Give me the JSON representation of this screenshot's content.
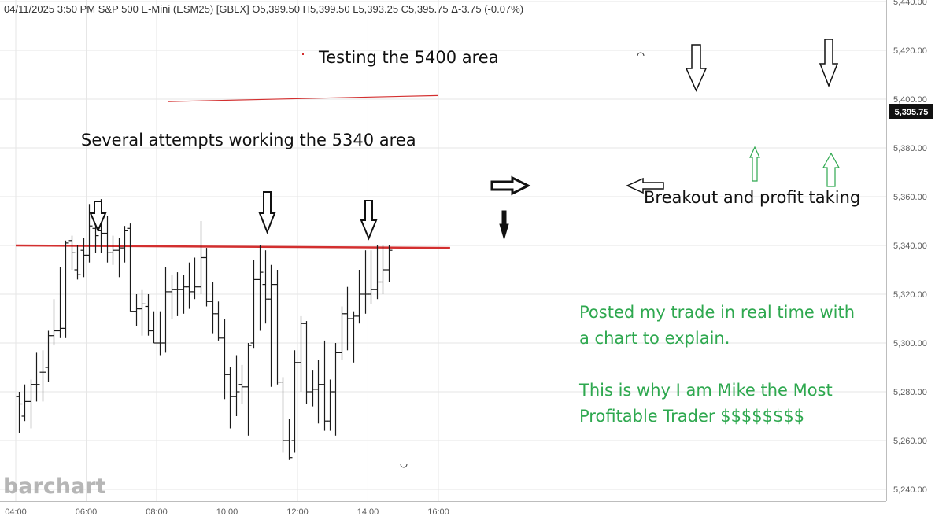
{
  "header": {
    "text": "04/11/2025  3:50 PM S&P 500 E-Mini (ESM25) [GBLX] O5,399.50 H5,399.50 L5,393.25 C5,395.75 Δ-3.75 (-0.07%)"
  },
  "watermark": "barchart",
  "last_price_label": "5,395.75",
  "colors": {
    "bar": "#1a1a1a",
    "support_line": "#d32f2f",
    "annotation_green": "#2ea84f",
    "price_box": "#111111",
    "grid": "#e6e6e6"
  },
  "annotations": [
    {
      "text": "Testing the 5400 area",
      "color": "#111111"
    },
    {
      "text": "Several attempts working the 5340 area",
      "color": "#111111"
    },
    {
      "text": "Breakout and profit taking",
      "color": "#111111"
    },
    {
      "text": "Posted my trade in real time with",
      "color": "#2ea84f"
    },
    {
      "text": "a chart to explain.",
      "color": "#2ea84f"
    },
    {
      "text": "This is why I am Mike the Most",
      "color": "#2ea84f"
    },
    {
      "text": "Profitable Trader $$$$$$$$",
      "color": "#2ea84f"
    }
  ],
  "chart_data": {
    "type": "ohlc",
    "x_ticks": [
      "04:00",
      "06:00",
      "08:00",
      "10:00",
      "12:00",
      "14:00",
      "16:00"
    ],
    "y_ticks": [
      "5,440.00",
      "5,420.00",
      "5,400.00",
      "5,380.00",
      "5,360.00",
      "5,340.00",
      "5,320.00",
      "5,300.00",
      "5,280.00",
      "5,260.00",
      "5,240.00"
    ],
    "x_range": [
      "04:00",
      "16:20"
    ],
    "y_range": [
      5237,
      5441
    ],
    "grid": true,
    "y_axis_position": "right",
    "horizontal_lines": [
      {
        "from": "04:00",
        "to": "16:20",
        "y_start": 5340,
        "y_end": 5339
      },
      {
        "from": "08:20",
        "to": "16:00",
        "y_start": 5399,
        "y_end": 5401.5
      }
    ],
    "bars": [
      {
        "t": "04:05",
        "o": 5278,
        "h": 5280,
        "l": 5263,
        "c": 5275
      },
      {
        "t": "04:15",
        "o": 5270,
        "h": 5283,
        "l": 5268,
        "c": 5276
      },
      {
        "t": "04:25",
        "o": 5276,
        "h": 5285,
        "l": 5265,
        "c": 5283
      },
      {
        "t": "04:35",
        "o": 5283,
        "h": 5296,
        "l": 5276,
        "c": 5283
      },
      {
        "t": "04:45",
        "o": 5288,
        "h": 5297,
        "l": 5276,
        "c": 5288
      },
      {
        "t": "04:55",
        "o": 5290,
        "h": 5305,
        "l": 5284,
        "c": 5303
      },
      {
        "t": "05:05",
        "o": 5303,
        "h": 5318,
        "l": 5299,
        "c": 5305
      },
      {
        "t": "05:15",
        "o": 5305,
        "h": 5331,
        "l": 5302,
        "c": 5306
      },
      {
        "t": "05:25",
        "o": 5306,
        "h": 5342,
        "l": 5302,
        "c": 5341
      },
      {
        "t": "05:35",
        "o": 5342,
        "h": 5344,
        "l": 5330,
        "c": 5337
      },
      {
        "t": "05:45",
        "o": 5330,
        "h": 5340,
        "l": 5326,
        "c": 5328
      },
      {
        "t": "05:55",
        "o": 5338,
        "h": 5343,
        "l": 5327,
        "c": 5336
      },
      {
        "t": "06:05",
        "o": 5336,
        "h": 5357,
        "l": 5333,
        "c": 5348
      },
      {
        "t": "06:15",
        "o": 5347,
        "h": 5356,
        "l": 5337,
        "c": 5344
      },
      {
        "t": "06:25",
        "o": 5346,
        "h": 5359,
        "l": 5337,
        "c": 5345
      },
      {
        "t": "06:35",
        "o": 5345,
        "h": 5352,
        "l": 5333,
        "c": 5337
      },
      {
        "t": "06:45",
        "o": 5337,
        "h": 5344,
        "l": 5332,
        "c": 5338
      },
      {
        "t": "06:55",
        "o": 5338,
        "h": 5343,
        "l": 5327,
        "c": 5339
      },
      {
        "t": "07:05",
        "o": 5339,
        "h": 5348,
        "l": 5333,
        "c": 5346
      },
      {
        "t": "07:15",
        "o": 5347,
        "h": 5349,
        "l": 5313,
        "c": 5313
      },
      {
        "t": "07:25",
        "o": 5313,
        "h": 5320,
        "l": 5307,
        "c": 5314
      },
      {
        "t": "07:35",
        "o": 5314,
        "h": 5322,
        "l": 5303,
        "c": 5316
      },
      {
        "t": "07:45",
        "o": 5315,
        "h": 5320,
        "l": 5303,
        "c": 5305
      },
      {
        "t": "07:55",
        "o": 5305,
        "h": 5313,
        "l": 5300,
        "c": 5300
      },
      {
        "t": "08:05",
        "o": 5300,
        "h": 5313,
        "l": 5295,
        "c": 5300
      },
      {
        "t": "08:15",
        "o": 5300,
        "h": 5331,
        "l": 5296,
        "c": 5321
      },
      {
        "t": "08:25",
        "o": 5321,
        "h": 5328,
        "l": 5310,
        "c": 5322
      },
      {
        "t": "08:35",
        "o": 5322,
        "h": 5329,
        "l": 5311,
        "c": 5322
      },
      {
        "t": "08:45",
        "o": 5322,
        "h": 5328,
        "l": 5312,
        "c": 5323
      },
      {
        "t": "08:55",
        "o": 5323,
        "h": 5333,
        "l": 5314,
        "c": 5321
      },
      {
        "t": "09:05",
        "o": 5321,
        "h": 5335,
        "l": 5318,
        "c": 5323
      },
      {
        "t": "09:15",
        "o": 5323,
        "h": 5350,
        "l": 5320,
        "c": 5335
      },
      {
        "t": "09:25",
        "o": 5335,
        "h": 5339,
        "l": 5315,
        "c": 5317
      },
      {
        "t": "09:35",
        "o": 5317,
        "h": 5325,
        "l": 5304,
        "c": 5312
      },
      {
        "t": "09:45",
        "o": 5312,
        "h": 5317,
        "l": 5301,
        "c": 5302
      },
      {
        "t": "09:55",
        "o": 5302,
        "h": 5310,
        "l": 5277,
        "c": 5287
      },
      {
        "t": "10:05",
        "o": 5287,
        "h": 5290,
        "l": 5265,
        "c": 5278
      },
      {
        "t": "10:15",
        "o": 5278,
        "h": 5295,
        "l": 5270,
        "c": 5280
      },
      {
        "t": "10:25",
        "o": 5283,
        "h": 5291,
        "l": 5275,
        "c": 5282
      },
      {
        "t": "10:35",
        "o": 5282,
        "h": 5300,
        "l": 5262,
        "c": 5299
      },
      {
        "t": "10:45",
        "o": 5300,
        "h": 5334,
        "l": 5298,
        "c": 5326
      },
      {
        "t": "10:55",
        "o": 5326,
        "h": 5340,
        "l": 5305,
        "c": 5329
      },
      {
        "t": "11:05",
        "o": 5324,
        "h": 5338,
        "l": 5308,
        "c": 5318
      },
      {
        "t": "11:15",
        "o": 5318,
        "h": 5332,
        "l": 5282,
        "c": 5324
      },
      {
        "t": "11:25",
        "o": 5324,
        "h": 5330,
        "l": 5283,
        "c": 5284
      },
      {
        "t": "11:35",
        "o": 5284,
        "h": 5286,
        "l": 5255,
        "c": 5260
      },
      {
        "t": "11:45",
        "o": 5260,
        "h": 5269,
        "l": 5252,
        "c": 5253
      },
      {
        "t": "11:55",
        "o": 5260,
        "h": 5297,
        "l": 5255,
        "c": 5292
      },
      {
        "t": "12:05",
        "o": 5292,
        "h": 5311,
        "l": 5280,
        "c": 5308
      },
      {
        "t": "12:15",
        "o": 5308,
        "h": 5309,
        "l": 5275,
        "c": 5280
      },
      {
        "t": "12:25",
        "o": 5280,
        "h": 5289,
        "l": 5274,
        "c": 5281
      },
      {
        "t": "12:35",
        "o": 5281,
        "h": 5293,
        "l": 5267,
        "c": 5283
      },
      {
        "t": "12:45",
        "o": 5283,
        "h": 5301,
        "l": 5264,
        "c": 5268
      },
      {
        "t": "12:55",
        "o": 5268,
        "h": 5285,
        "l": 5264,
        "c": 5280
      },
      {
        "t": "13:05",
        "o": 5280,
        "h": 5300,
        "l": 5262,
        "c": 5296
      },
      {
        "t": "13:15",
        "o": 5296,
        "h": 5315,
        "l": 5293,
        "c": 5312
      },
      {
        "t": "13:25",
        "o": 5312,
        "h": 5323,
        "l": 5297,
        "c": 5310
      },
      {
        "t": "13:35",
        "o": 5310,
        "h": 5313,
        "l": 5292,
        "c": 5311
      },
      {
        "t": "13:45",
        "o": 5311,
        "h": 5330,
        "l": 5308,
        "c": 5320
      },
      {
        "t": "13:55",
        "o": 5320,
        "h": 5338,
        "l": 5312,
        "c": 5320
      },
      {
        "t": "14:05",
        "o": 5320,
        "h": 5338,
        "l": 5316,
        "c": 5322
      },
      {
        "t": "14:15",
        "o": 5322,
        "h": 5340,
        "l": 5318,
        "c": 5325
      },
      {
        "t": "14:25",
        "o": 5325,
        "h": 5340,
        "l": 5320,
        "c": 5330
      },
      {
        "t": "14:35",
        "o": 5330,
        "h": 5340,
        "l": 5325,
        "c": 5338
      }
    ]
  }
}
